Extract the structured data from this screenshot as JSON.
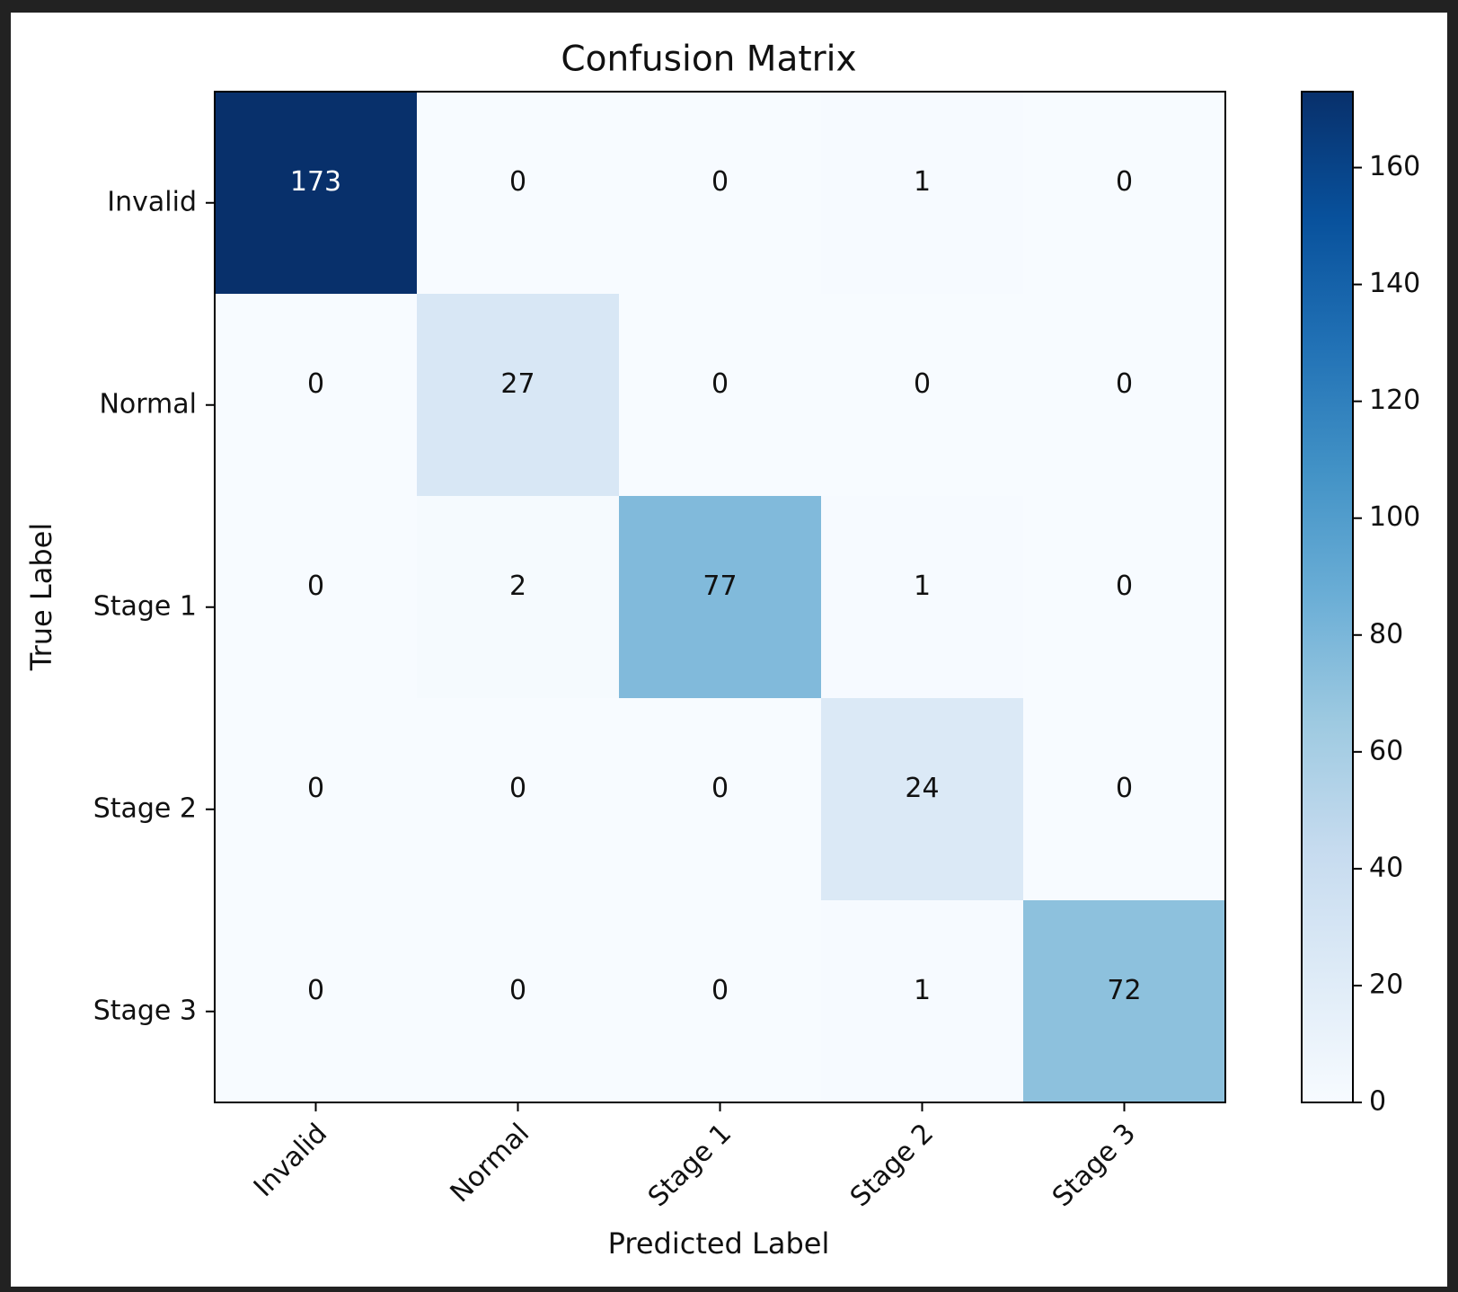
{
  "chart_data": {
    "type": "heatmap",
    "title": "Confusion Matrix",
    "xlabel": "Predicted Label",
    "ylabel": "True Label",
    "x_categories": [
      "Invalid",
      "Normal",
      "Stage 1",
      "Stage 2",
      "Stage 3"
    ],
    "y_categories": [
      "Invalid",
      "Normal",
      "Stage 1",
      "Stage 2",
      "Stage 3"
    ],
    "matrix": [
      [
        173,
        0,
        0,
        1,
        0
      ],
      [
        0,
        27,
        0,
        0,
        0
      ],
      [
        0,
        2,
        77,
        1,
        0
      ],
      [
        0,
        0,
        0,
        24,
        0
      ],
      [
        0,
        0,
        0,
        1,
        72
      ]
    ],
    "colormap": "Blues",
    "color_range": [
      0,
      173
    ],
    "colorbar_ticks": [
      "0",
      "20",
      "40",
      "60",
      "80",
      "100",
      "120",
      "140",
      "160"
    ],
    "colorbar_tick_values": [
      0,
      20,
      40,
      60,
      80,
      100,
      120,
      140,
      160
    ],
    "grid": false
  }
}
